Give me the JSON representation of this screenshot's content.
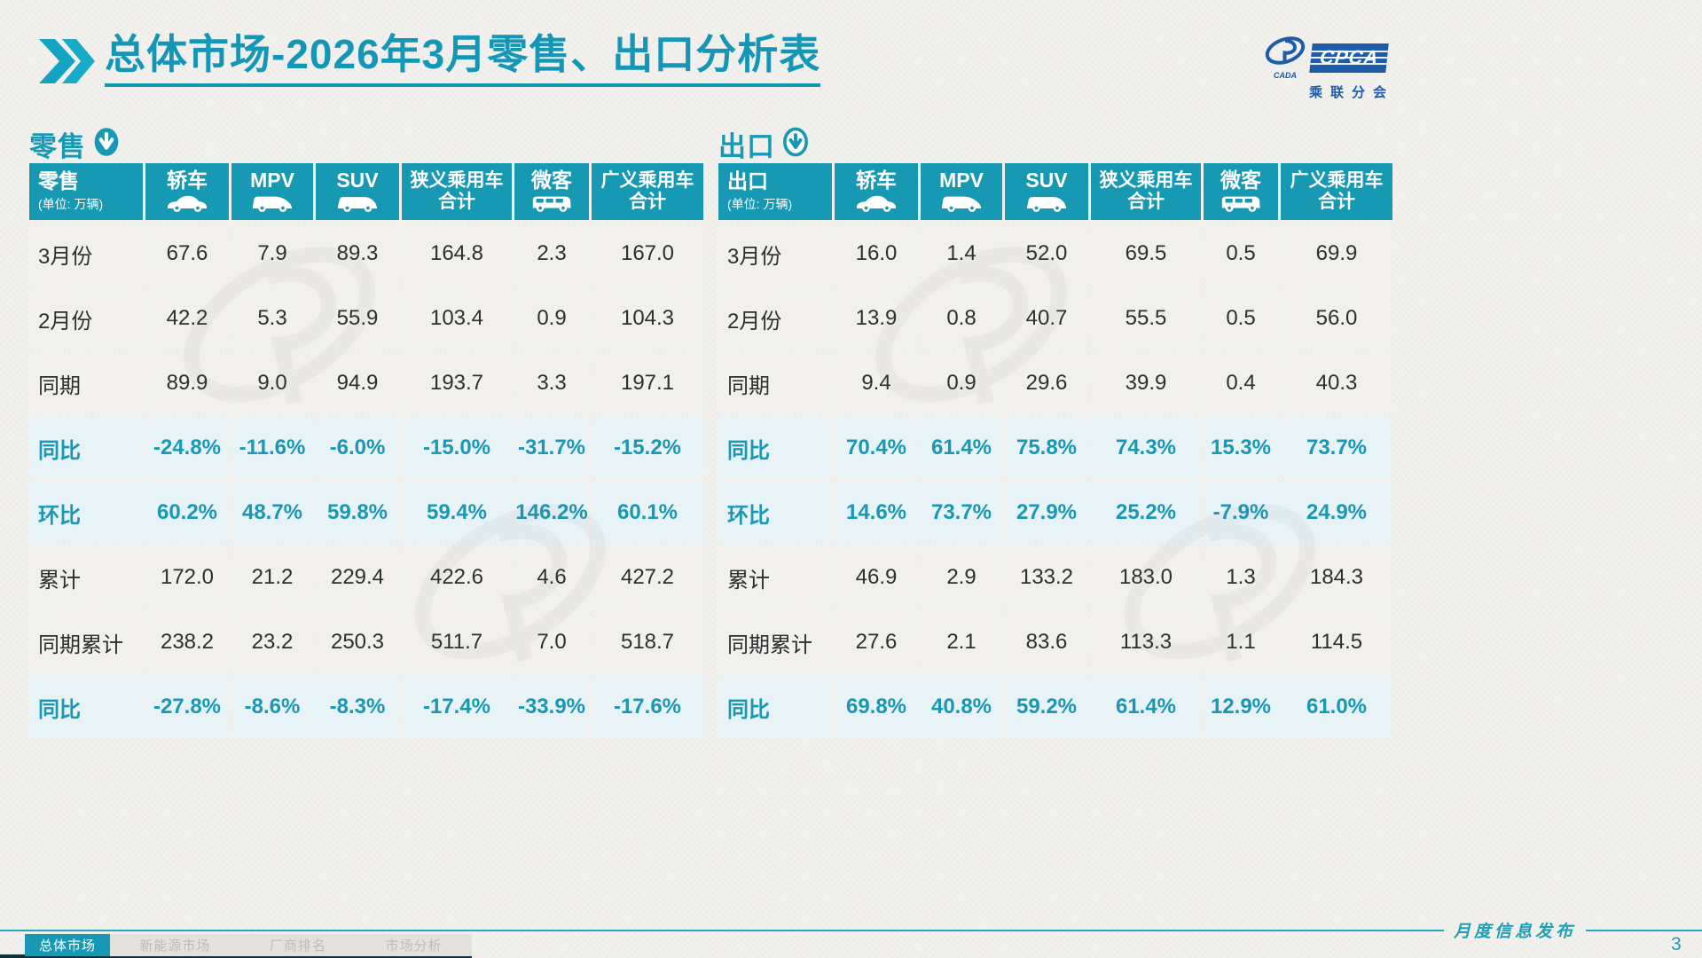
{
  "header": {
    "title": "总体市场-2026年3月零售、出口分析表",
    "logo": {
      "acronym": "CPCA",
      "subtitle": "乘联分会",
      "emblem_text": "CADA"
    }
  },
  "colors": {
    "teal": "#1799b4",
    "logo_blue": "#1d5cab",
    "highlight_bg": "#e8f3f8",
    "cell_bg": "#f2f0ed"
  },
  "tables": [
    {
      "section_label": "零售",
      "title": "零售",
      "unit": "(单位: 万辆)",
      "columns": [
        {
          "label": "轿车",
          "icon": "sedan-icon"
        },
        {
          "label": "MPV",
          "icon": "mpv-icon"
        },
        {
          "label": "SUV",
          "icon": "suv-icon"
        },
        {
          "label": "狭义乘用车",
          "label2": "合计"
        },
        {
          "label": "微客",
          "icon": "van-icon"
        },
        {
          "label": "广义乘用车",
          "label2": "合计"
        }
      ],
      "rows": [
        {
          "label": "3月份",
          "highlight": false,
          "values": [
            "67.6",
            "7.9",
            "89.3",
            "164.8",
            "2.3",
            "167.0"
          ]
        },
        {
          "label": "2月份",
          "highlight": false,
          "values": [
            "42.2",
            "5.3",
            "55.9",
            "103.4",
            "0.9",
            "104.3"
          ]
        },
        {
          "label": "同期",
          "highlight": false,
          "values": [
            "89.9",
            "9.0",
            "94.9",
            "193.7",
            "3.3",
            "197.1"
          ]
        },
        {
          "label": "同比",
          "highlight": true,
          "values": [
            "-24.8%",
            "-11.6%",
            "-6.0%",
            "-15.0%",
            "-31.7%",
            "-15.2%"
          ]
        },
        {
          "label": "环比",
          "highlight": true,
          "values": [
            "60.2%",
            "48.7%",
            "59.8%",
            "59.4%",
            "146.2%",
            "60.1%"
          ]
        },
        {
          "label": "累计",
          "highlight": false,
          "values": [
            "172.0",
            "21.2",
            "229.4",
            "422.6",
            "4.6",
            "427.2"
          ]
        },
        {
          "label": "同期累计",
          "highlight": false,
          "values": [
            "238.2",
            "23.2",
            "250.3",
            "511.7",
            "7.0",
            "518.7"
          ]
        },
        {
          "label": "同比",
          "highlight": true,
          "values": [
            "-27.8%",
            "-8.6%",
            "-8.3%",
            "-17.4%",
            "-33.9%",
            "-17.6%"
          ]
        }
      ]
    },
    {
      "section_label": "出口",
      "title": "出口",
      "unit": "(单位: 万辆)",
      "columns": [
        {
          "label": "轿车",
          "icon": "sedan-icon"
        },
        {
          "label": "MPV",
          "icon": "mpv-icon"
        },
        {
          "label": "SUV",
          "icon": "suv-icon"
        },
        {
          "label": "狭义乘用车",
          "label2": "合计"
        },
        {
          "label": "微客",
          "icon": "van-icon"
        },
        {
          "label": "广义乘用车",
          "label2": "合计"
        }
      ],
      "rows": [
        {
          "label": "3月份",
          "highlight": false,
          "values": [
            "16.0",
            "1.4",
            "52.0",
            "69.5",
            "0.5",
            "69.9"
          ]
        },
        {
          "label": "2月份",
          "highlight": false,
          "values": [
            "13.9",
            "0.8",
            "40.7",
            "55.5",
            "0.5",
            "56.0"
          ]
        },
        {
          "label": "同期",
          "highlight": false,
          "values": [
            "9.4",
            "0.9",
            "29.6",
            "39.9",
            "0.4",
            "40.3"
          ]
        },
        {
          "label": "同比",
          "highlight": true,
          "values": [
            "70.4%",
            "61.4%",
            "75.8%",
            "74.3%",
            "15.3%",
            "73.7%"
          ]
        },
        {
          "label": "环比",
          "highlight": true,
          "values": [
            "14.6%",
            "73.7%",
            "27.9%",
            "25.2%",
            "-7.9%",
            "24.9%"
          ]
        },
        {
          "label": "累计",
          "highlight": false,
          "values": [
            "46.9",
            "2.9",
            "133.2",
            "183.0",
            "1.3",
            "184.3"
          ]
        },
        {
          "label": "同期累计",
          "highlight": false,
          "values": [
            "27.6",
            "2.1",
            "83.6",
            "113.3",
            "1.1",
            "114.5"
          ]
        },
        {
          "label": "同比",
          "highlight": true,
          "values": [
            "69.8%",
            "40.8%",
            "59.2%",
            "61.4%",
            "12.9%",
            "61.0%"
          ]
        }
      ]
    }
  ],
  "footer": {
    "tabs": [
      {
        "label": "总体市场",
        "active": true
      },
      {
        "label": "新能源市场",
        "active": false
      },
      {
        "label": "厂商排名",
        "active": false
      },
      {
        "label": "市场分析",
        "active": false
      }
    ],
    "publish_label": "月度信息发布",
    "page_number": "3"
  }
}
